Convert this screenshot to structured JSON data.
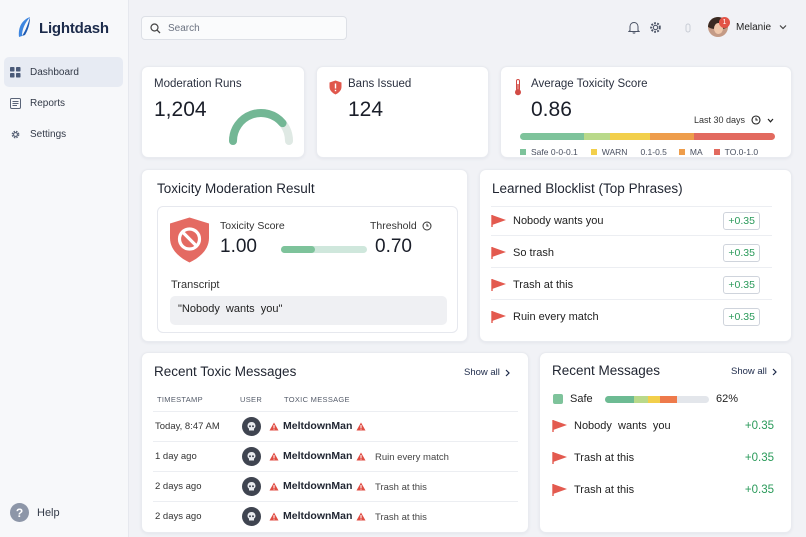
{
  "app": {
    "name": "Lightdash"
  },
  "sidebar": {
    "items": [
      {
        "label": "Dashboard",
        "active": true
      },
      {
        "label": "Reports"
      },
      {
        "label": "Settings"
      }
    ],
    "help": "Help"
  },
  "search": {
    "placeholder": "Search"
  },
  "header": {
    "user": "Melanie",
    "notification_count": "1"
  },
  "stats": {
    "runs": {
      "label": "Moderation Runs",
      "value": "1,204",
      "gauge_fraction": 0.78
    },
    "bans": {
      "label": "Bans Issued",
      "value": "124"
    },
    "toxicity": {
      "label": "Average Toxicity Score",
      "value": "0.86",
      "period": "Last 30 days",
      "legend": [
        {
          "label": "Safe 0-0-0.1",
          "color": "#7ec39b"
        },
        {
          "label": "WARN",
          "color": "#f2cf4b"
        },
        {
          "label": "0.1-0.5",
          "color": ""
        },
        {
          "label": "MA",
          "color": "#ee9d4b"
        },
        {
          "label": "TO.0-1.0",
          "color": "#e26a5f"
        }
      ]
    }
  },
  "result": {
    "title": "Toxicity Moderation Result",
    "score_label": "Toxicity Score",
    "score": "1.00",
    "threshold_label": "Threshold",
    "threshold": "0.70",
    "threshold_fraction": 0.4,
    "transcript_label": "Transcript",
    "transcript": "\"Nobody  wants  you\""
  },
  "blocklist": {
    "title": "Learned Blocklist (Top Phrases)",
    "rows": [
      {
        "phrase": "Nobody wants you",
        "delta": "+0.35"
      },
      {
        "phrase": "So trash",
        "delta": "+0.35"
      },
      {
        "phrase": "Trash at this",
        "delta": "+0.35"
      },
      {
        "phrase": "Ruin every match",
        "delta": "+0.35"
      }
    ]
  },
  "toxic_messages": {
    "title": "Recent Toxic Messages",
    "show_all": "Show all",
    "headers": {
      "timestamp": "TIMESTAMP",
      "user": "USER",
      "message": "TOXIC MESSAGE"
    },
    "rows": [
      {
        "time": "Today, 8:47 AM",
        "user": "MeltdownMan",
        "message": ""
      },
      {
        "time": "1 day ago",
        "user": "MeltdownMan",
        "message": "Ruin every match"
      },
      {
        "time": "2 days ago",
        "user": "MeltdownMan",
        "message": "Trash at this"
      },
      {
        "time": "2 days ago",
        "user": "MeltdownMan",
        "message": "Trash at this"
      }
    ]
  },
  "recent_messages": {
    "title": "Recent Messages",
    "show_all": "Show all",
    "safe_label": "Safe",
    "safe_percent": "62%",
    "rows": [
      {
        "text": "Nobody  wants  you",
        "delta": "+0.35"
      },
      {
        "text": "Trash at this",
        "delta": "+0.35"
      },
      {
        "text": "Trash at this",
        "delta": "+0.35"
      }
    ]
  }
}
